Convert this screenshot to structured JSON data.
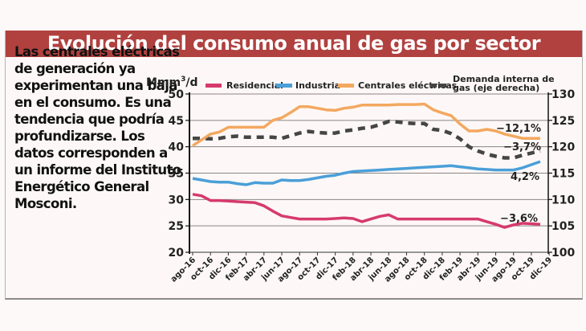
{
  "header": {
    "title": "Evolución del consumo anual de gas por sector"
  },
  "description": "Las centrales eléctricas de generación ya experimentan una baja en el consumo. Es una tendencia que podría profundizarse. Los datos corresponden a un informe del Instituto Energético General Mosconi.",
  "chart_data": {
    "type": "line",
    "title": "Evolución del consumo anual de gas por sector",
    "ylabel": "Mmm³/d",
    "ylabel_main": "Mmm",
    "ylabel_sup": "3",
    "ylabel_tail": "/d",
    "ylim": [
      20,
      50
    ],
    "yticks": [
      20,
      25,
      30,
      35,
      40,
      45,
      50
    ],
    "y2lim": [
      100,
      130
    ],
    "y2ticks": [
      100,
      105,
      110,
      115,
      120,
      125,
      130
    ],
    "grid": true,
    "legend_position": "top",
    "x_tick_labels": [
      "ago-16",
      "oct-16",
      "dic-16",
      "feb-17",
      "abr-17",
      "jun-17",
      "ago-17",
      "oct-17",
      "dic-17",
      "feb-18",
      "abr-18",
      "jun-18",
      "ago-18",
      "oct-18",
      "dic-18",
      "feb-19",
      "abr-19",
      "jun-19",
      "ago-19",
      "oct-19",
      "dic-19"
    ],
    "x": [
      "ago-16",
      "sep-16",
      "oct-16",
      "nov-16",
      "dic-16",
      "ene-17",
      "feb-17",
      "mar-17",
      "abr-17",
      "may-17",
      "jun-17",
      "jul-17",
      "ago-17",
      "sep-17",
      "oct-17",
      "nov-17",
      "dic-17",
      "ene-18",
      "feb-18",
      "mar-18",
      "abr-18",
      "may-18",
      "jun-18",
      "jul-18",
      "ago-18",
      "sep-18",
      "oct-18",
      "nov-18",
      "dic-18",
      "ene-19",
      "feb-19",
      "mar-19",
      "abr-19",
      "may-19",
      "jun-19",
      "jul-19",
      "ago-19",
      "sep-19",
      "oct-19",
      "nov-19"
    ],
    "series": [
      {
        "name": "Residencial",
        "axis": "left",
        "color": "#d63a6e",
        "style": "solid",
        "values": [
          31.0,
          30.7,
          29.8,
          29.8,
          29.7,
          29.6,
          29.5,
          29.4,
          28.8,
          27.8,
          26.9,
          26.6,
          26.3,
          26.3,
          26.3,
          26.3,
          26.4,
          26.5,
          26.4,
          25.8,
          26.3,
          26.8,
          27.1,
          26.3,
          26.3,
          26.3,
          26.3,
          26.3,
          26.3,
          26.3,
          26.3,
          26.3,
          26.3,
          25.8,
          25.3,
          24.7,
          25.2,
          25.5,
          25.4,
          25.3
        ],
        "annotation": "−3,6%"
      },
      {
        "name": "Industria",
        "axis": "left",
        "color": "#4a9fd8",
        "style": "solid",
        "values": [
          34.0,
          33.7,
          33.4,
          33.3,
          33.3,
          33.0,
          32.8,
          33.2,
          33.1,
          33.1,
          33.7,
          33.6,
          33.6,
          33.8,
          34.1,
          34.4,
          34.6,
          35.0,
          35.3,
          35.4,
          35.5,
          35.6,
          35.7,
          35.8,
          35.9,
          36.0,
          36.1,
          36.2,
          36.3,
          36.4,
          36.2,
          36.0,
          35.8,
          35.7,
          35.6,
          35.6,
          35.6,
          36.0,
          36.6,
          37.2
        ],
        "annotation": "4,2%"
      },
      {
        "name": "Centrales eléctricas",
        "axis": "left",
        "color": "#f3a860",
        "style": "solid",
        "values": [
          40.2,
          41.3,
          42.4,
          42.8,
          43.7,
          43.7,
          43.7,
          43.7,
          43.7,
          45.0,
          45.5,
          46.5,
          47.6,
          47.6,
          47.3,
          47.0,
          46.9,
          47.3,
          47.5,
          47.9,
          47.9,
          47.9,
          47.9,
          48.0,
          48.0,
          48.0,
          48.1,
          47.0,
          46.4,
          45.9,
          44.3,
          43.0,
          43.0,
          43.3,
          43.0,
          42.4,
          42.0,
          41.6,
          41.6,
          41.6
        ],
        "annotation": "−12,1%"
      },
      {
        "name": "Demanda interna de gas (eje derecha)",
        "axis": "right",
        "color": "#454545",
        "style": "dashed",
        "values": [
          121.6,
          121.6,
          121.5,
          121.6,
          121.9,
          122.0,
          121.8,
          121.8,
          121.8,
          121.8,
          121.6,
          122.1,
          122.6,
          122.9,
          122.7,
          122.6,
          122.6,
          123.0,
          123.2,
          123.5,
          123.7,
          124.2,
          124.8,
          124.7,
          124.5,
          124.4,
          124.4,
          123.3,
          123.1,
          122.5,
          121.5,
          120.0,
          119.2,
          118.6,
          118.2,
          117.9,
          117.9,
          118.4,
          118.8,
          119.2
        ],
        "annotation": "−3,7%"
      }
    ]
  }
}
